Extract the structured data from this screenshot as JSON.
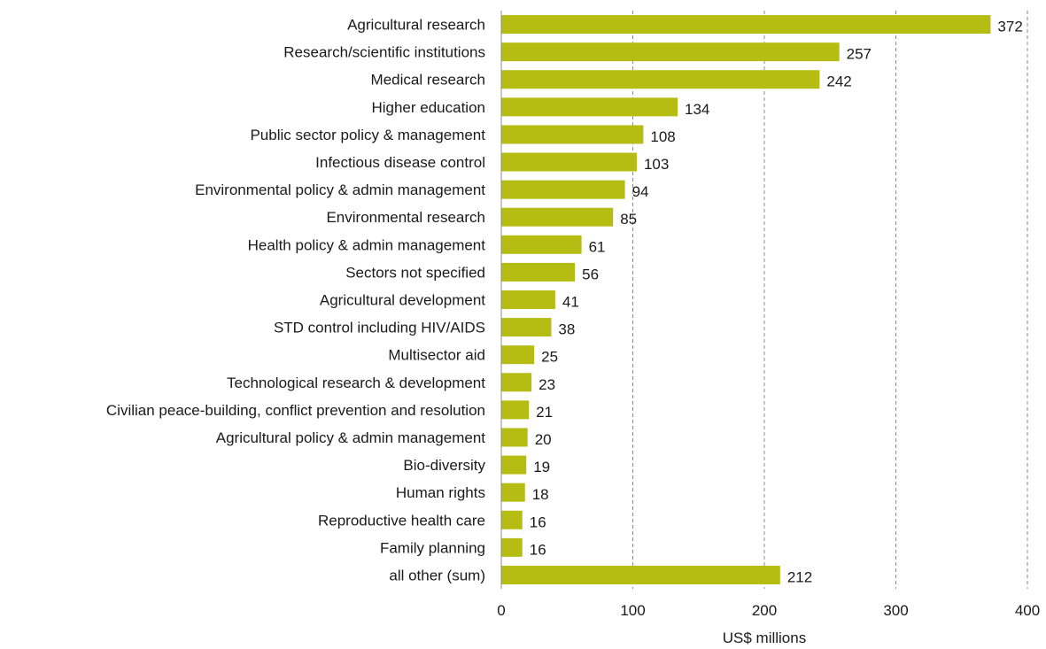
{
  "chart_data": {
    "type": "bar",
    "orientation": "horizontal",
    "categories": [
      "Agricultural research",
      "Research/scientific institutions",
      "Medical research",
      "Higher education",
      "Public sector policy  & management",
      "Infectious disease control",
      "Environmental policy & admin management",
      "Environmental research",
      "Health policy & admin management",
      "Sectors not specified",
      "Agricultural development",
      "STD control including HIV/AIDS",
      "Multisector aid",
      "Technological research & development",
      "Civilian peace-building, conflict prevention and resolution",
      "Agricultural policy & admin management",
      "Bio-diversity",
      "Human rights",
      "Reproductive health care",
      "Family planning",
      "all other (sum)"
    ],
    "values": [
      372,
      257,
      242,
      134,
      108,
      103,
      94,
      85,
      61,
      56,
      41,
      38,
      25,
      23,
      21,
      20,
      19,
      18,
      16,
      16,
      212
    ],
    "xlabel": "US$ millions",
    "xlim": [
      0,
      400
    ],
    "xticks": [
      0,
      100,
      200,
      300,
      400
    ],
    "grid": "vertical dashed",
    "bar_color": "#b5bd13"
  }
}
